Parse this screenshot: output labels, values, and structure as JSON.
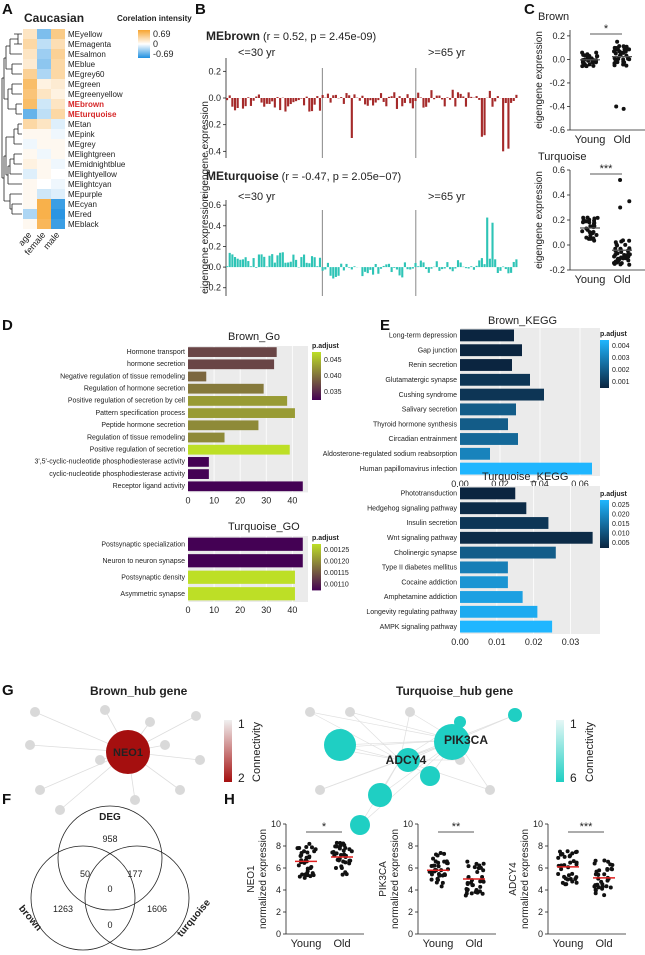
{
  "panel_labels": {
    "A": "A",
    "B": "B",
    "C": "C",
    "D": "D",
    "E": "E",
    "G": "G",
    "F": "F",
    "H": "H"
  },
  "heatmap": {
    "title": "Caucasian",
    "legend_title": "Corelation intensity",
    "legend_max": "0.69",
    "legend_mid": "0",
    "legend_min": "-0.69",
    "columns": [
      "age",
      "female",
      "male"
    ],
    "highlight": [
      "MEbrown",
      "MEturquoise"
    ],
    "rows": [
      {
        "name": "MEyellow",
        "v": [
          0.2,
          -0.4,
          0.4
        ]
      },
      {
        "name": "MEmagenta",
        "v": [
          0.3,
          -0.2,
          0.25
        ]
      },
      {
        "name": "MEsalmon",
        "v": [
          0.2,
          -0.3,
          0.35
        ]
      },
      {
        "name": "MEblue",
        "v": [
          0.15,
          -0.35,
          0.3
        ]
      },
      {
        "name": "MEgrey60",
        "v": [
          0.35,
          -0.25,
          0.3
        ]
      },
      {
        "name": "MEgreen",
        "v": [
          0.5,
          0.1,
          0.15
        ]
      },
      {
        "name": "MEgreenyellow",
        "v": [
          0.45,
          0.2,
          0.1
        ]
      },
      {
        "name": "MEbrown",
        "v": [
          0.5,
          -0.15,
          0.2
        ]
      },
      {
        "name": "MEturquoise",
        "v": [
          -0.47,
          -0.2,
          0.3
        ]
      },
      {
        "name": "MEtan",
        "v": [
          0.3,
          0.2,
          -0.1
        ]
      },
      {
        "name": "MEpink",
        "v": [
          0.05,
          0.05,
          -0.05
        ]
      },
      {
        "name": "MEgrey",
        "v": [
          -0.05,
          0.05,
          0.05
        ]
      },
      {
        "name": "MElightgreen",
        "v": [
          0.05,
          -0.05,
          0.05
        ]
      },
      {
        "name": "MEmidnightblue",
        "v": [
          0.1,
          0.05,
          -0.05
        ]
      },
      {
        "name": "MElightyellow",
        "v": [
          -0.1,
          0.05,
          0.0
        ]
      },
      {
        "name": "MElightcyan",
        "v": [
          0.05,
          0.0,
          -0.05
        ]
      },
      {
        "name": "MEpurple",
        "v": [
          0.05,
          -0.15,
          -0.1
        ]
      },
      {
        "name": "MEcyan",
        "v": [
          0.05,
          0.6,
          -0.6
        ]
      },
      {
        "name": "MEred",
        "v": [
          -0.25,
          0.6,
          -0.65
        ]
      },
      {
        "name": "MEblack",
        "v": [
          0.05,
          0.55,
          -0.6
        ]
      }
    ]
  },
  "eigengene": {
    "ylabel": "eigengene expression",
    "young_label": "<=30 yr",
    "old_label": ">=65 yr",
    "brown": {
      "name": "MEbrown",
      "stats": "(r = 0.52, p = 2.45e-09)",
      "color": "#a52a2a",
      "ticks": [
        "0.2",
        "0.0",
        "-0.2",
        "-0.4"
      ],
      "ylim": [
        -0.45,
        0.3
      ]
    },
    "turquoise": {
      "name": "MEturquoise",
      "stats": "(r = -0.47, p = 2.05e−07)",
      "color": "#2ec4b6",
      "ticks": [
        "0.6",
        "0.4",
        "0.2",
        "0.0",
        "-0.2"
      ],
      "ylim": [
        -0.28,
        0.65
      ]
    }
  },
  "panelC": {
    "brown": {
      "title": "Brown",
      "sig": "*",
      "ticks": [
        "0.2",
        "0.0",
        "-0.2",
        "-0.4",
        "-0.6"
      ],
      "ylim": [
        -0.6,
        0.25
      ]
    },
    "turquoise": {
      "title": "Turquoise",
      "sig": "***",
      "ticks": [
        "0.6",
        "0.4",
        "0.2",
        "0.0",
        "-0.2"
      ],
      "ylim": [
        -0.2,
        0.6
      ]
    },
    "ylabel": "eigengene expression",
    "groups": [
      "Young",
      "Old"
    ]
  },
  "chart_data": [
    {
      "type": "bar",
      "title": "Brown_Go",
      "legend_title": "p.adjust",
      "legend_ticks": [
        "0.045",
        "0.040",
        "0.035"
      ],
      "categories": [
        "Hormone transport",
        "hormone secretion",
        "Negative regulation of tissue remodeling",
        "Regulation of hormone secretion",
        "Positive regulation of secretion by cell",
        "Pattern specification process",
        "Peptide hormone secretion",
        "Regulation of tissue remodeling",
        "Positive regulation of secretion",
        "3',5'-cyclic-nucleotide phosphodiesterase activity",
        "cyclic-nucleotide phosphodiesterase activity",
        "Receptor ligand activity"
      ],
      "values": [
        34,
        33,
        7,
        29,
        38,
        41,
        27,
        14,
        39,
        8,
        8,
        44
      ],
      "padj": [
        0.038,
        0.038,
        0.04,
        0.041,
        0.043,
        0.043,
        0.042,
        0.042,
        0.047,
        0.034,
        0.034,
        0.034
      ],
      "xticks": [
        "0",
        "10",
        "20",
        "30",
        "40"
      ],
      "xlim": [
        0,
        46
      ]
    },
    {
      "type": "bar",
      "title": "Turquoise_GO",
      "legend_title": "p.adjust",
      "legend_ticks": [
        "0.00125",
        "0.00120",
        "0.00115",
        "0.00110"
      ],
      "categories": [
        "Postsynaptic specialization",
        "Neuron to neuron synapse",
        "Postsynaptic density",
        "Asymmetric synapse"
      ],
      "values": [
        44,
        44,
        41,
        41
      ],
      "padj": [
        0.00108,
        0.00108,
        0.00128,
        0.00128
      ],
      "xticks": [
        "0",
        "10",
        "20",
        "30",
        "40"
      ],
      "xlim": [
        0,
        46
      ]
    },
    {
      "type": "bar",
      "title": "Brown_KEGG",
      "legend_title": "p.adjust",
      "legend_ticks": [
        "0.004",
        "0.003",
        "0.002",
        "0.001"
      ],
      "categories": [
        "Long-term depression",
        "Gap junction",
        "Renin secretion",
        "Glutamatergic synapse",
        "Cushing syndrome",
        "Salivary secretion",
        "Thyroid hormone synthesis",
        "Circadian entrainment",
        "Aldosterone-regulated sodium reabsorption",
        "Human papillomavirus infection"
      ],
      "values": [
        0.027,
        0.031,
        0.026,
        0.035,
        0.042,
        0.028,
        0.024,
        0.029,
        0.015,
        0.066
      ],
      "padj": [
        0.0008,
        0.0008,
        0.0008,
        0.0012,
        0.0012,
        0.0022,
        0.0022,
        0.0025,
        0.0032,
        0.0045
      ],
      "xticks": [
        "0.00",
        "0.02",
        "0.04",
        "0.06"
      ],
      "xlim": [
        0,
        0.07
      ]
    },
    {
      "type": "bar",
      "title": "Turquoise_KEGG",
      "legend_title": "p.adjust",
      "legend_ticks": [
        "0.025",
        "0.020",
        "0.015",
        "0.010",
        "0.005"
      ],
      "categories": [
        "Phototransduction",
        "Hedgehog signaling pathway",
        "Insulin secretion",
        "Wnt signaling pathway",
        "Cholinergic synapse",
        "Type II diabetes mellitus",
        "Cocaine addiction",
        "Amphetamine addiction",
        "Longevity regulating pathway",
        "AMPK signaling pathway"
      ],
      "values": [
        0.015,
        0.018,
        0.024,
        0.036,
        0.026,
        0.013,
        0.013,
        0.017,
        0.021,
        0.025
      ],
      "padj": [
        0.002,
        0.003,
        0.005,
        0.003,
        0.012,
        0.018,
        0.022,
        0.024,
        0.026,
        0.028
      ],
      "xticks": [
        "0.00",
        "0.01",
        "0.02",
        "0.03"
      ],
      "xlim": [
        0,
        0.038
      ]
    }
  ],
  "hubs": {
    "brown_title": "Brown_hub gene",
    "turquoise_title": "Turquoise_hub gene",
    "brown_gene": "NEO1",
    "turquoise_genes": [
      "ADCY4",
      "PIK3CA"
    ],
    "brown_legend": {
      "title": "Connectivity",
      "top": "1",
      "bottom": "2"
    },
    "turquoise_legend": {
      "title": "Connectivity",
      "top": "1",
      "bottom": "6"
    }
  },
  "venn": {
    "labels": {
      "deg": "DEG",
      "brown": "brown",
      "turquoise": "turquoise"
    },
    "counts": {
      "deg_only": "958",
      "brown_only": "1263",
      "turq_only": "1606",
      "deg_brown": "50",
      "deg_turq": "177",
      "all": "0",
      "brown_turq": "0"
    }
  },
  "panelH": [
    {
      "gene": "NEO1",
      "ylabel": "normalized expression",
      "sig": "*",
      "ticks": [
        "10",
        "8",
        "6",
        "4",
        "2",
        "0"
      ]
    },
    {
      "gene": "PIK3CA",
      "ylabel": "normalized expression",
      "sig": "**",
      "ticks": [
        "10",
        "8",
        "6",
        "4",
        "2",
        "0"
      ]
    },
    {
      "gene": "ADCY4",
      "ylabel": "normalized expression",
      "sig": "***",
      "ticks": [
        "10",
        "8",
        "6",
        "4",
        "2",
        "0"
      ]
    }
  ],
  "groups": [
    "Young",
    "Old"
  ]
}
